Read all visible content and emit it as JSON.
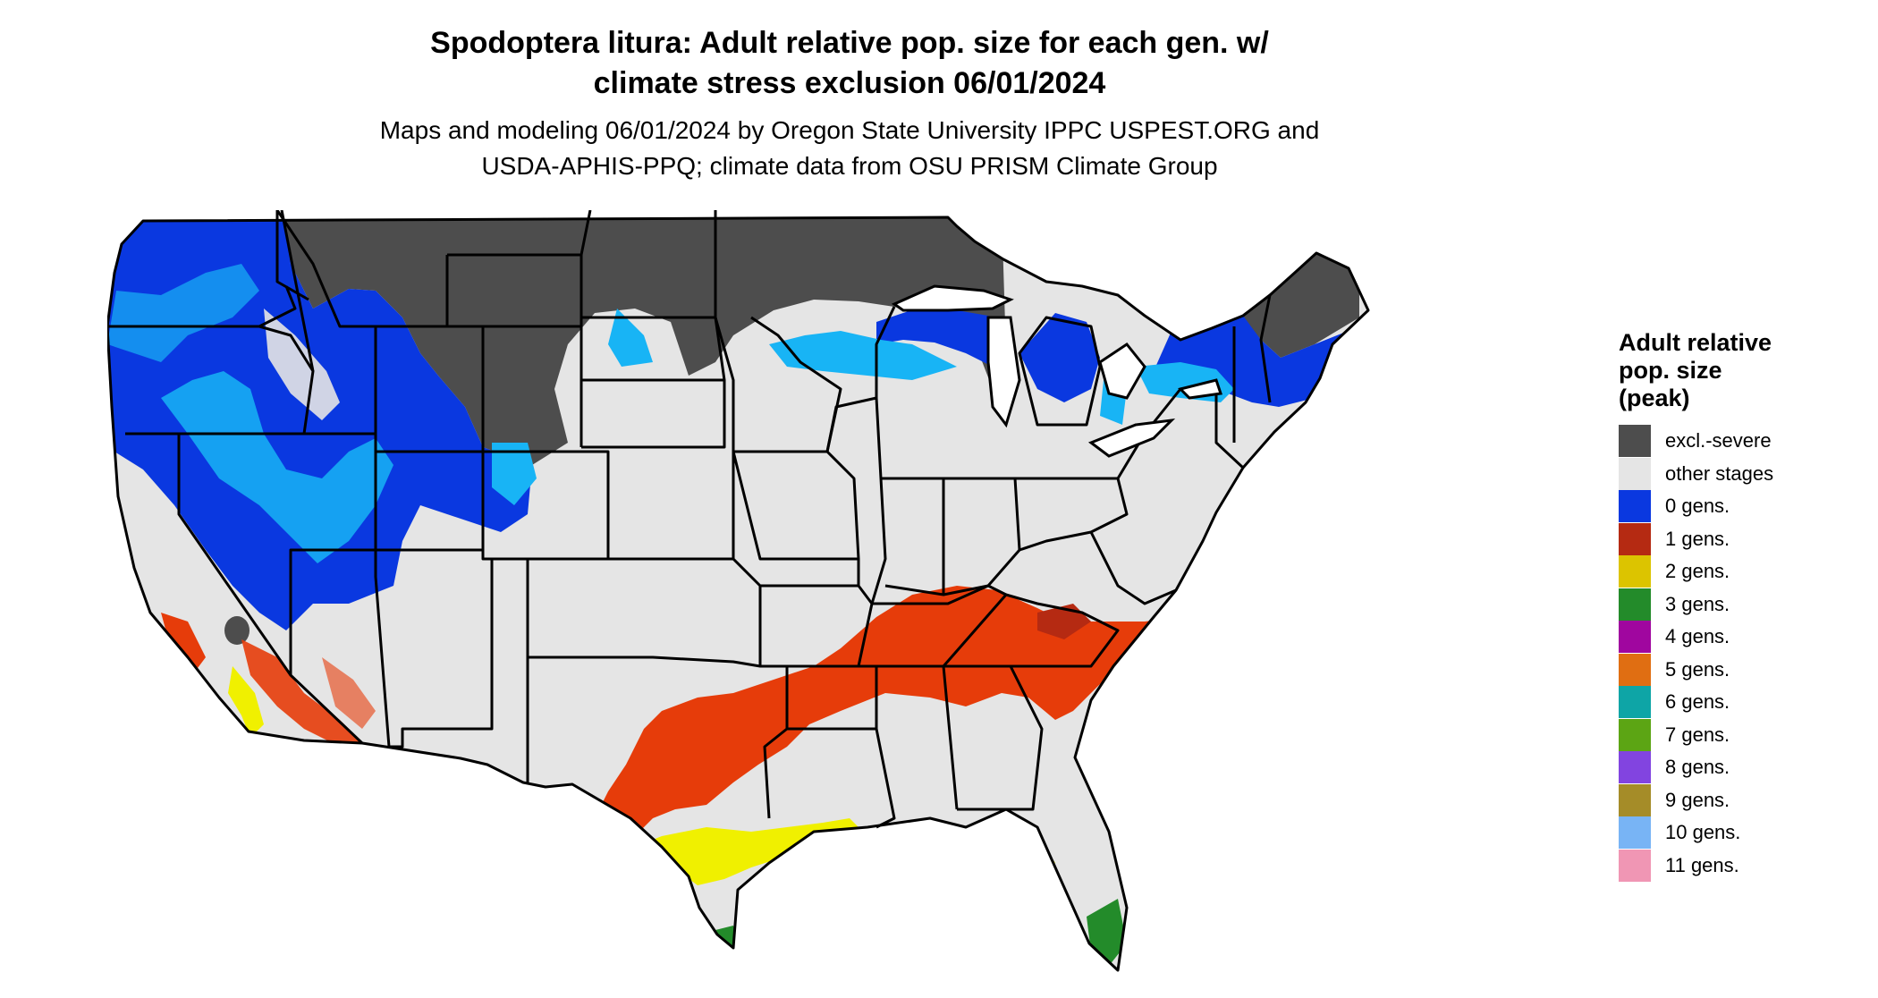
{
  "title": {
    "line1": "Spodoptera litura: Adult relative pop. size for each gen. w/",
    "line2": "climate stress exclusion 06/01/2024"
  },
  "subtitle": {
    "line1": "Maps and modeling 06/01/2024 by Oregon State University IPPC USPEST.ORG and",
    "line2": "USDA-APHIS-PPQ; climate data from OSU PRISM Climate Group"
  },
  "legend": {
    "title_lines": [
      "Adult relative",
      "pop. size",
      "(peak)"
    ],
    "items": [
      {
        "label": "excl.-severe",
        "color": "#4d4d4d"
      },
      {
        "label": "other stages",
        "color": "#e5e5e5"
      },
      {
        "label": "0 gens.",
        "color": "#0a38e0"
      },
      {
        "label": "1 gens.",
        "color": "#b52a12"
      },
      {
        "label": "2 gens.",
        "color": "#dcc400"
      },
      {
        "label": "3 gens.",
        "color": "#238b2a"
      },
      {
        "label": "4 gens.",
        "color": "#a0069f"
      },
      {
        "label": "5 gens.",
        "color": "#e06e12"
      },
      {
        "label": "6 gens.",
        "color": "#0ea5a6"
      },
      {
        "label": "7 gens.",
        "color": "#5ca514"
      },
      {
        "label": "8 gens.",
        "color": "#8244e0"
      },
      {
        "label": "9 gens.",
        "color": "#a58c28"
      },
      {
        "label": "10 gens.",
        "color": "#78b4f5"
      },
      {
        "label": "11 gens.",
        "color": "#f096b4"
      }
    ]
  },
  "colors": {
    "land": "#e5e5e5",
    "excluded": "#4d4d4d",
    "zero_gens_deep": "#0a38e0",
    "zero_gens_light": "#18b4f5",
    "one_gen": "#e63c0a",
    "two_gens": "#f0f000",
    "three_gens": "#238b2a",
    "state_border": "#000000"
  }
}
